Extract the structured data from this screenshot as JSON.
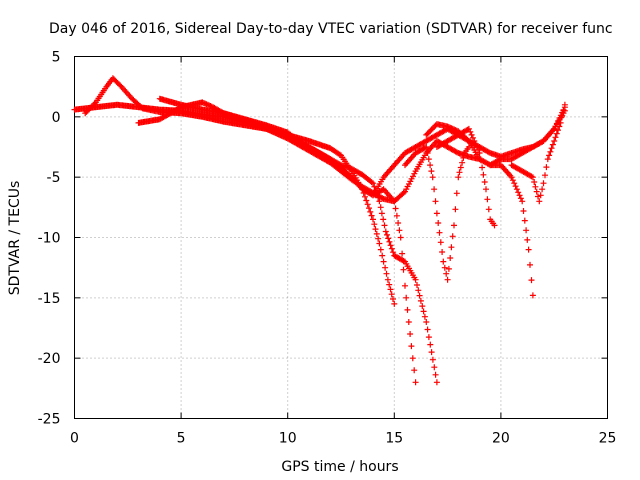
{
  "chart_data": {
    "type": "scatter",
    "title": "Day 046 of 2016, Sidereal Day-to-day VTEC variation (SDTVAR) for receiver func",
    "xlabel": "GPS time / hours",
    "ylabel": "SDTVAR / TECUs",
    "xlim": [
      0,
      25
    ],
    "ylim": [
      -25,
      5
    ],
    "xticks": [
      "0",
      "5",
      "10",
      "15",
      "20",
      "25"
    ],
    "yticks": [
      "5",
      "0",
      "-5",
      "-10",
      "-15",
      "-20",
      "-25"
    ],
    "grid": true,
    "marker": "+",
    "color": "#ff0000",
    "series": [
      {
        "name": "s1",
        "x": [
          0.0,
          1.0,
          2.0,
          3.0,
          4.0,
          5.0,
          6.0,
          7.0,
          8.0,
          9.0,
          10.0,
          11.0,
          12.0,
          12.5,
          13.0,
          13.5,
          14.0,
          14.5,
          15.0,
          15.5,
          16.0,
          16.5,
          17.0,
          17.5,
          18.0,
          18.5,
          19.0
        ],
        "y": [
          0.6,
          0.8,
          1.0,
          0.8,
          0.6,
          0.5,
          0.2,
          0.0,
          -0.5,
          -1.0,
          -1.8,
          -2.8,
          -3.8,
          -4.5,
          -5.2,
          -5.8,
          -6.3,
          -6.8,
          -7.0,
          -6.2,
          -4.5,
          -3.0,
          -2.0,
          -2.5,
          -3.0,
          -3.3,
          -3.5
        ]
      },
      {
        "name": "s2",
        "x": [
          0.5,
          1.0,
          1.5,
          1.8,
          2.2,
          2.7,
          3.2,
          4.0,
          5.0,
          6.0,
          7.0,
          8.0,
          9.0,
          10.0,
          11.0,
          12.0,
          12.5,
          13.0,
          13.5,
          14.0,
          14.3,
          14.5,
          14.7,
          15.0
        ],
        "y": [
          0.3,
          1.2,
          2.5,
          3.2,
          2.5,
          1.5,
          0.7,
          0.4,
          0.3,
          0.0,
          -0.4,
          -0.7,
          -1.0,
          -1.5,
          -2.0,
          -2.6,
          -3.2,
          -4.5,
          -6.0,
          -8.5,
          -10.5,
          -12.0,
          -13.5,
          -15.5
        ]
      },
      {
        "name": "s3",
        "x": [
          3.0,
          4.0,
          5.0,
          6.0,
          6.5,
          7.0,
          8.0,
          9.0,
          10.0,
          11.0,
          12.0,
          13.0,
          13.5,
          14.0,
          14.5,
          15.0,
          15.3,
          15.5,
          15.8,
          16.0
        ],
        "y": [
          -0.5,
          -0.2,
          0.8,
          1.2,
          0.8,
          0.3,
          -0.3,
          -0.8,
          -1.5,
          -2.5,
          -3.5,
          -5.0,
          -6.0,
          -6.5,
          -6.0,
          -7.0,
          -10.0,
          -14.0,
          -19.0,
          -22.0
        ]
      },
      {
        "name": "s4",
        "x": [
          4.0,
          5.0,
          6.0,
          7.0,
          8.0,
          9.0,
          10.0,
          10.5,
          11.0,
          11.5,
          12.0,
          12.5,
          13.0,
          13.5,
          14.0,
          14.3,
          14.6,
          15.0,
          15.5,
          16.0,
          16.5,
          17.0
        ],
        "y": [
          1.5,
          1.0,
          0.6,
          0.3,
          -0.2,
          -0.7,
          -1.3,
          -2.0,
          -2.5,
          -3.0,
          -3.5,
          -4.0,
          -4.3,
          -4.8,
          -5.5,
          -7.0,
          -9.5,
          -11.5,
          -12.0,
          -13.5,
          -17.0,
          -22.0
        ]
      },
      {
        "name": "s5",
        "x": [
          14.0,
          14.5,
          15.0,
          15.5,
          16.0,
          16.5,
          17.0,
          17.5,
          18.0,
          18.5,
          19.0,
          19.5,
          20.0,
          20.5,
          21.0,
          21.5,
          22.0,
          22.5,
          23.0
        ],
        "y": [
          -6.5,
          -5.0,
          -4.0,
          -3.0,
          -2.5,
          -2.0,
          -1.5,
          -1.0,
          -1.5,
          -2.0,
          -2.5,
          -3.0,
          -3.3,
          -3.0,
          -2.7,
          -2.5,
          -2.0,
          -1.0,
          0.5
        ]
      },
      {
        "name": "s6",
        "x": [
          15.5,
          16.0,
          16.5,
          16.8,
          17.0,
          17.3,
          17.5,
          17.8,
          18.0,
          18.3,
          18.5
        ],
        "y": [
          -4.0,
          -3.0,
          -2.5,
          -5.0,
          -8.0,
          -12.0,
          -13.5,
          -9.0,
          -5.0,
          -3.0,
          -2.5
        ]
      },
      {
        "name": "s7",
        "x": [
          16.5,
          17.0,
          17.5,
          18.0,
          18.5,
          19.0,
          19.5,
          20.0,
          20.5,
          21.0,
          21.3,
          21.5
        ],
        "y": [
          -1.5,
          -0.6,
          -0.8,
          -1.2,
          -2.0,
          -3.5,
          -4.0,
          -4.0,
          -5.0,
          -7.0,
          -11.0,
          -14.8
        ]
      },
      {
        "name": "s8",
        "x": [
          17.0,
          17.5,
          18.0,
          18.5,
          19.0,
          19.3,
          19.5,
          19.7
        ],
        "y": [
          -2.5,
          -2.0,
          -1.5,
          -1.0,
          -3.0,
          -6.0,
          -8.5,
          -9.0
        ]
      },
      {
        "name": "s9",
        "x": [
          19.5,
          20.0,
          20.5,
          21.0,
          21.5,
          22.0,
          22.5,
          23.0
        ],
        "y": [
          -4.0,
          -3.5,
          -3.5,
          -3.0,
          -2.5,
          -2.0,
          -1.0,
          0.8
        ]
      },
      {
        "name": "s10",
        "x": [
          20.5,
          21.0,
          21.5,
          21.8,
          22.0,
          22.2,
          22.5,
          22.8,
          23.0
        ],
        "y": [
          -4.0,
          -4.5,
          -5.0,
          -7.0,
          -5.5,
          -3.5,
          -2.0,
          -0.5,
          1.0
        ]
      }
    ]
  }
}
